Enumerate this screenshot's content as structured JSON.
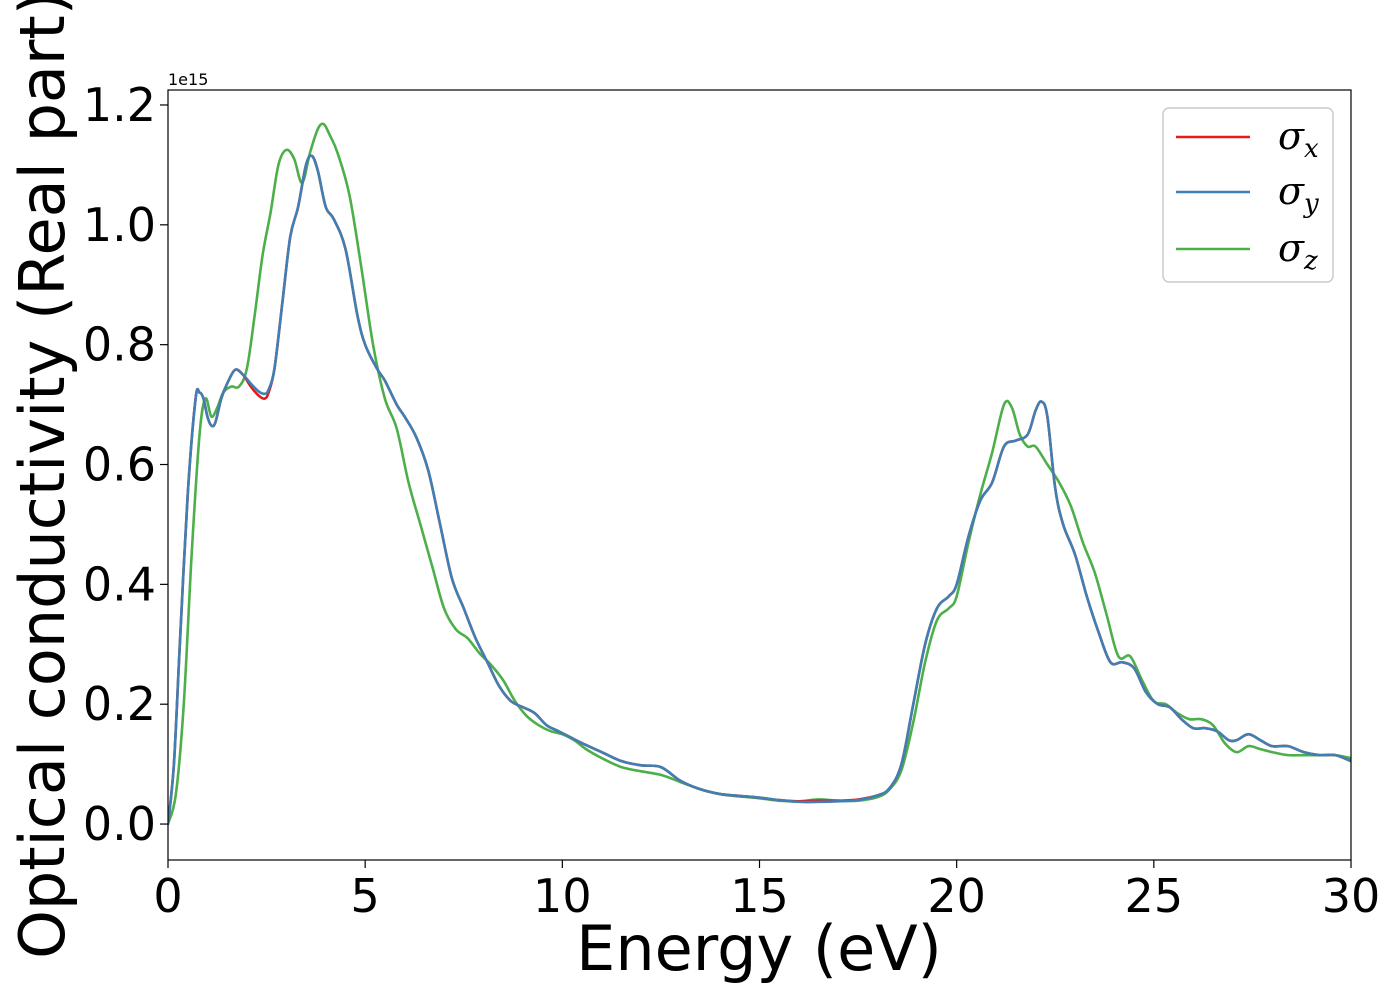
{
  "chart_data": {
    "type": "line",
    "xlabel": "Energy (eV)",
    "ylabel": "Optical conductivity (Real part)",
    "y_offset_label": "1e15",
    "xlim": [
      0,
      30
    ],
    "ylim": [
      -0.06,
      1.225
    ],
    "x_ticks": [
      0,
      5,
      10,
      15,
      20,
      25,
      30
    ],
    "x_tick_labels": [
      "0",
      "5",
      "10",
      "15",
      "20",
      "25",
      "30"
    ],
    "y_ticks": [
      0.0,
      0.2,
      0.4,
      0.6,
      0.8,
      1.0,
      1.2
    ],
    "y_tick_labels": [
      "0.0",
      "0.2",
      "0.4",
      "0.6",
      "0.8",
      "1.0",
      "1.2"
    ],
    "grid": false,
    "legend_position": "top-right",
    "series": [
      {
        "name": "σx",
        "legend_base": "σ",
        "legend_sub": "x",
        "color": "#e41a1c",
        "x": [
          0,
          0.15,
          0.3,
          0.5,
          0.7,
          0.8,
          0.9,
          1.0,
          1.1,
          1.2,
          1.35,
          1.5,
          1.7,
          1.9,
          2.1,
          2.3,
          2.45,
          2.55,
          2.7,
          2.9,
          3.1,
          3.3,
          3.5,
          3.65,
          3.8,
          4.0,
          4.2,
          4.5,
          4.8,
          5.0,
          5.3,
          5.5,
          5.8,
          6.0,
          6.3,
          6.6,
          6.9,
          7.2,
          7.5,
          7.8,
          8.1,
          8.4,
          8.7,
          9.0,
          9.3,
          9.6,
          9.9,
          10.2,
          10.5,
          11.0,
          11.5,
          12.0,
          12.5,
          13.0,
          13.5,
          14.0,
          14.5,
          15.0,
          15.5,
          16.0,
          16.5,
          17.0,
          17.5,
          18.0,
          18.3,
          18.6,
          18.9,
          19.2,
          19.5,
          19.8,
          20.0,
          20.3,
          20.6,
          20.9,
          21.2,
          21.5,
          21.8,
          22.0,
          22.15,
          22.3,
          22.5,
          22.7,
          23.0,
          23.3,
          23.6,
          23.9,
          24.2,
          24.5,
          24.8,
          25.1,
          25.4,
          25.7,
          26.0,
          26.3,
          26.6,
          26.9,
          27.1,
          27.4,
          27.7,
          28.0,
          28.4,
          28.8,
          29.2,
          29.6,
          30.0
        ],
        "values": [
          0.0,
          0.1,
          0.3,
          0.55,
          0.71,
          0.72,
          0.71,
          0.68,
          0.665,
          0.67,
          0.71,
          0.735,
          0.758,
          0.75,
          0.73,
          0.715,
          0.71,
          0.72,
          0.76,
          0.87,
          0.98,
          1.03,
          1.1,
          1.115,
          1.09,
          1.03,
          1.01,
          0.96,
          0.85,
          0.8,
          0.76,
          0.74,
          0.7,
          0.68,
          0.645,
          0.59,
          0.5,
          0.41,
          0.36,
          0.31,
          0.27,
          0.23,
          0.205,
          0.195,
          0.185,
          0.165,
          0.155,
          0.145,
          0.135,
          0.12,
          0.105,
          0.098,
          0.095,
          0.072,
          0.058,
          0.05,
          0.047,
          0.044,
          0.04,
          0.038,
          0.039,
          0.039,
          0.041,
          0.048,
          0.06,
          0.1,
          0.2,
          0.3,
          0.36,
          0.38,
          0.4,
          0.48,
          0.54,
          0.57,
          0.63,
          0.64,
          0.65,
          0.69,
          0.705,
          0.68,
          0.56,
          0.5,
          0.45,
          0.38,
          0.32,
          0.27,
          0.27,
          0.26,
          0.22,
          0.2,
          0.195,
          0.175,
          0.16,
          0.16,
          0.155,
          0.14,
          0.14,
          0.15,
          0.14,
          0.13,
          0.13,
          0.12,
          0.115,
          0.115,
          0.105
        ]
      },
      {
        "name": "σy",
        "legend_base": "σ",
        "legend_sub": "y",
        "color": "#3f7fb3",
        "x": [
          0,
          0.15,
          0.3,
          0.5,
          0.7,
          0.8,
          0.9,
          1.0,
          1.1,
          1.2,
          1.35,
          1.5,
          1.7,
          1.9,
          2.1,
          2.3,
          2.45,
          2.55,
          2.7,
          2.9,
          3.1,
          3.3,
          3.5,
          3.65,
          3.8,
          4.0,
          4.2,
          4.5,
          4.8,
          5.0,
          5.3,
          5.5,
          5.8,
          6.0,
          6.3,
          6.6,
          6.9,
          7.2,
          7.5,
          7.8,
          8.1,
          8.4,
          8.7,
          9.0,
          9.3,
          9.6,
          9.9,
          10.2,
          10.5,
          11.0,
          11.5,
          12.0,
          12.5,
          13.0,
          13.5,
          14.0,
          14.5,
          15.0,
          15.5,
          16.0,
          16.5,
          17.0,
          17.5,
          18.0,
          18.3,
          18.6,
          18.9,
          19.2,
          19.5,
          19.8,
          20.0,
          20.3,
          20.6,
          20.9,
          21.2,
          21.5,
          21.8,
          22.0,
          22.15,
          22.3,
          22.5,
          22.7,
          23.0,
          23.3,
          23.6,
          23.9,
          24.2,
          24.5,
          24.8,
          25.1,
          25.4,
          25.7,
          26.0,
          26.3,
          26.6,
          26.9,
          27.1,
          27.4,
          27.7,
          28.0,
          28.4,
          28.8,
          29.2,
          29.6,
          30.0
        ],
        "values": [
          0.0,
          0.1,
          0.3,
          0.55,
          0.71,
          0.72,
          0.71,
          0.68,
          0.665,
          0.67,
          0.71,
          0.735,
          0.758,
          0.75,
          0.735,
          0.722,
          0.718,
          0.725,
          0.76,
          0.87,
          0.98,
          1.03,
          1.1,
          1.115,
          1.09,
          1.03,
          1.01,
          0.96,
          0.85,
          0.8,
          0.76,
          0.74,
          0.7,
          0.68,
          0.645,
          0.59,
          0.5,
          0.41,
          0.36,
          0.31,
          0.27,
          0.23,
          0.205,
          0.195,
          0.185,
          0.165,
          0.155,
          0.145,
          0.135,
          0.12,
          0.105,
          0.098,
          0.095,
          0.072,
          0.058,
          0.05,
          0.047,
          0.044,
          0.04,
          0.037,
          0.037,
          0.038,
          0.04,
          0.048,
          0.06,
          0.1,
          0.2,
          0.3,
          0.36,
          0.38,
          0.4,
          0.48,
          0.54,
          0.57,
          0.63,
          0.64,
          0.65,
          0.69,
          0.705,
          0.68,
          0.56,
          0.5,
          0.45,
          0.38,
          0.32,
          0.27,
          0.27,
          0.26,
          0.22,
          0.2,
          0.195,
          0.175,
          0.16,
          0.16,
          0.155,
          0.14,
          0.14,
          0.15,
          0.14,
          0.13,
          0.13,
          0.12,
          0.115,
          0.115,
          0.105
        ]
      },
      {
        "name": "σz",
        "legend_base": "σ",
        "legend_sub": "z",
        "color": "#4daf4a",
        "x": [
          0,
          0.2,
          0.4,
          0.6,
          0.8,
          0.95,
          1.1,
          1.25,
          1.4,
          1.6,
          1.8,
          2.0,
          2.2,
          2.4,
          2.6,
          2.8,
          3.0,
          3.2,
          3.4,
          3.6,
          3.8,
          3.95,
          4.1,
          4.3,
          4.6,
          4.9,
          5.2,
          5.5,
          5.8,
          6.1,
          6.4,
          6.7,
          7.0,
          7.3,
          7.6,
          7.9,
          8.2,
          8.5,
          8.8,
          9.1,
          9.4,
          9.7,
          10.0,
          10.3,
          10.6,
          11.0,
          11.5,
          12.0,
          12.5,
          13.0,
          13.5,
          14.0,
          14.5,
          15.0,
          15.5,
          16.0,
          16.5,
          17.0,
          17.5,
          18.0,
          18.3,
          18.6,
          18.9,
          19.2,
          19.5,
          19.8,
          20.0,
          20.3,
          20.6,
          20.9,
          21.2,
          21.4,
          21.6,
          21.8,
          22.0,
          22.3,
          22.6,
          22.9,
          23.2,
          23.5,
          23.8,
          24.1,
          24.4,
          24.7,
          25.0,
          25.3,
          25.6,
          25.9,
          26.2,
          26.5,
          26.8,
          27.1,
          27.4,
          27.7,
          28.0,
          28.4,
          28.8,
          29.2,
          29.6,
          30.0
        ],
        "values": [
          0.0,
          0.05,
          0.2,
          0.45,
          0.65,
          0.71,
          0.68,
          0.695,
          0.72,
          0.73,
          0.73,
          0.76,
          0.85,
          0.95,
          1.02,
          1.1,
          1.125,
          1.11,
          1.07,
          1.12,
          1.16,
          1.168,
          1.15,
          1.12,
          1.05,
          0.93,
          0.8,
          0.71,
          0.66,
          0.57,
          0.5,
          0.43,
          0.36,
          0.325,
          0.31,
          0.285,
          0.265,
          0.24,
          0.205,
          0.18,
          0.165,
          0.155,
          0.15,
          0.14,
          0.125,
          0.11,
          0.095,
          0.088,
          0.082,
          0.07,
          0.058,
          0.05,
          0.046,
          0.043,
          0.039,
          0.038,
          0.041,
          0.039,
          0.039,
          0.045,
          0.058,
          0.09,
          0.17,
          0.27,
          0.34,
          0.36,
          0.38,
          0.47,
          0.55,
          0.62,
          0.7,
          0.695,
          0.65,
          0.63,
          0.63,
          0.6,
          0.57,
          0.53,
          0.47,
          0.42,
          0.35,
          0.28,
          0.28,
          0.24,
          0.205,
          0.2,
          0.185,
          0.175,
          0.175,
          0.165,
          0.135,
          0.12,
          0.13,
          0.125,
          0.12,
          0.115,
          0.115,
          0.115,
          0.115,
          0.11
        ]
      }
    ]
  }
}
